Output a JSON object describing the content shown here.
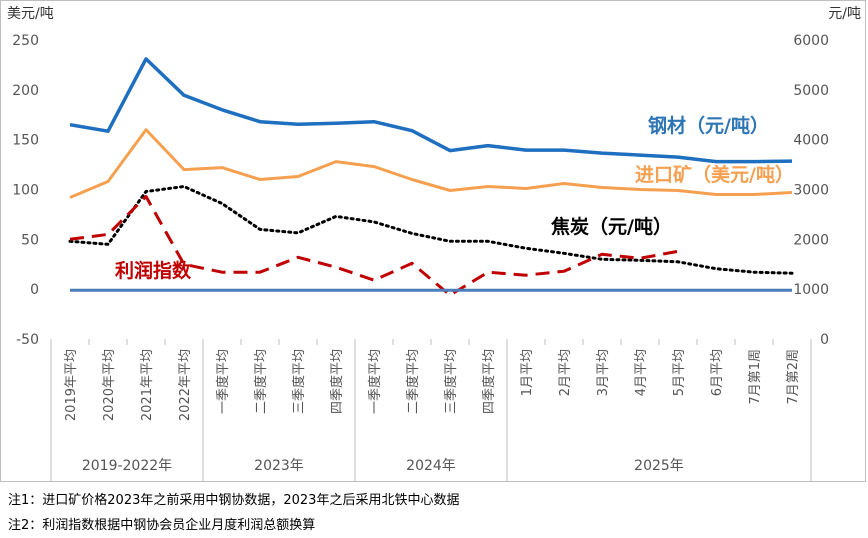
{
  "chart_data": {
    "type": "line",
    "left_axis": {
      "unit": "美元/吨",
      "min": -50,
      "max": 250,
      "ticks": [
        -50,
        0,
        50,
        100,
        150,
        200,
        250
      ]
    },
    "right_axis": {
      "unit": "元/吨",
      "min": 0,
      "max": 6000,
      "ticks": [
        0,
        1000,
        2000,
        3000,
        4000,
        5000,
        6000
      ]
    },
    "categories": [
      "2019年平均",
      "2020年平均",
      "2021年平均",
      "2022年平均",
      "一季度平均",
      "二季度平均",
      "三季度平均",
      "四季度平均",
      "一季度平均",
      "二季度平均",
      "三季度平均",
      "四季度平均",
      "1月平均",
      "2月平均",
      "3月平均",
      "4月平均",
      "5月平均",
      "6月平均",
      "7月第1周",
      "7月第2周"
    ],
    "groups": [
      {
        "label": "2019-2022年",
        "count": 4
      },
      {
        "label": "2023年",
        "count": 4
      },
      {
        "label": "2024年",
        "count": 4
      },
      {
        "label": "2025年",
        "count": 8
      }
    ],
    "series": [
      {
        "name": "钢材（元/吨）",
        "axis": "right",
        "color": "#1f6fc0",
        "style": "solid",
        "width": 3.5,
        "values": [
          4300,
          4170,
          5620,
          4890,
          4600,
          4360,
          4310,
          4330,
          4360,
          4180,
          3780,
          3880,
          3790,
          3790,
          3730,
          3690,
          3650,
          3560,
          3560,
          3570
        ]
      },
      {
        "name": "进口矿（美元/吨）",
        "axis": "left",
        "color": "#f5a050",
        "style": "solid",
        "width": 3,
        "values": [
          92,
          108,
          160,
          120,
          122,
          110,
          113,
          128,
          123,
          110,
          99,
          103,
          101,
          106,
          102,
          100,
          99,
          95,
          95,
          97
        ]
      },
      {
        "name": "焦炭（元/吨）",
        "axis": "right",
        "color": "#000000",
        "style": "dotted",
        "width": 3,
        "values": [
          1960,
          1900,
          2960,
          3060,
          2720,
          2200,
          2130,
          2460,
          2350,
          2120,
          1960,
          1960,
          1820,
          1720,
          1600,
          1580,
          1550,
          1410,
          1340,
          1320
        ]
      },
      {
        "name": "利润指数",
        "axis": "left",
        "color": "#c00000",
        "style": "dashed",
        "width": 3,
        "values": [
          50,
          55,
          93,
          25,
          17,
          17,
          32,
          22,
          9,
          26,
          -6,
          17,
          14,
          18,
          35,
          31,
          38,
          null,
          null,
          null
        ]
      },
      {
        "name": "baseline",
        "axis": "left",
        "color": "#4a7ebb",
        "style": "solid",
        "width": 3,
        "values": [
          -1,
          -1,
          -1,
          -1,
          -1,
          -1,
          -1,
          -1,
          -1,
          -1,
          -1,
          -1,
          -1,
          -1,
          -1,
          -1,
          -1,
          -1,
          -1,
          -1
        ]
      }
    ],
    "labels": {
      "steel": "钢材（元/吨）",
      "ore": "进口矿（美元/吨）",
      "coke": "焦炭（元/吨）",
      "profit": "利润指数"
    }
  },
  "notes": [
    "注1：进口矿价格2023年之前采用中钢协数据，2023年之后采用北铁中心数据",
    "注2：利润指数根据中钢协会员企业月度利润总额换算"
  ]
}
